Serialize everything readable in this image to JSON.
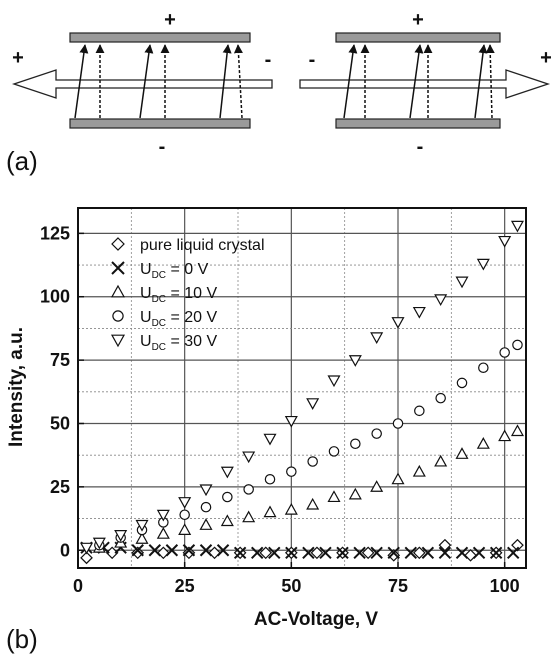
{
  "panel_a": {
    "label": "(a)",
    "left_cell": {
      "top_sign": "+",
      "bottom_sign": "-",
      "left_sign": "+",
      "right_sign": "-"
    },
    "right_cell": {
      "top_sign": "+",
      "bottom_sign": "-",
      "left_sign": "-",
      "right_sign": "+"
    }
  },
  "panel_b": {
    "label": "(b)"
  },
  "chart_data": {
    "type": "scatter",
    "xlabel": "AC-Voltage, V",
    "ylabel": "Intensity, a.u.",
    "xlim": [
      0,
      105
    ],
    "ylim": [
      -7,
      135
    ],
    "xticks": [
      0,
      25,
      50,
      75,
      100
    ],
    "yticks": [
      0,
      25,
      50,
      75,
      100,
      125
    ],
    "grid": true,
    "legend_position": "top-left",
    "series": [
      {
        "name": "pure liquid crystal",
        "name_main": "pure liquid crystal",
        "name_sub": "",
        "name_tail": "",
        "marker": "diamond",
        "x": [
          2,
          8,
          14,
          20,
          26,
          32,
          38,
          44,
          50,
          56,
          62,
          68,
          74,
          80,
          86,
          92,
          98,
          103
        ],
        "y": [
          -3,
          -1,
          -1,
          -1,
          -1,
          -1,
          -1,
          -1,
          -1,
          -1,
          -1,
          -1,
          -2,
          -1,
          2,
          -2,
          -1,
          2
        ]
      },
      {
        "name": "UDC = 0 V",
        "name_main": "U",
        "name_sub": "DC",
        "name_tail": " = 0 V",
        "marker": "x",
        "x": [
          2,
          6,
          10,
          14,
          18,
          22,
          26,
          30,
          34,
          38,
          42,
          46,
          50,
          54,
          58,
          62,
          66,
          70,
          74,
          78,
          82,
          86,
          90,
          94,
          98,
          102
        ],
        "y": [
          1,
          1,
          1,
          0,
          0,
          0,
          0,
          0,
          0,
          -1,
          -1,
          -1,
          -1,
          -1,
          -1,
          -1,
          -1,
          -1,
          -1,
          -1,
          -1,
          -1,
          -1,
          -1,
          -1,
          -1
        ]
      },
      {
        "name": "UDC = 10 V",
        "name_main": "U",
        "name_sub": "DC",
        "name_tail": " = 10 V",
        "marker": "triangle-up",
        "x": [
          5,
          10,
          15,
          20,
          25,
          30,
          35,
          40,
          45,
          50,
          55,
          60,
          65,
          70,
          75,
          80,
          85,
          90,
          95,
          100,
          103
        ],
        "y": [
          1,
          3,
          4.5,
          6.5,
          8,
          10,
          11.5,
          13,
          15,
          16,
          18,
          21,
          22,
          25,
          28,
          31,
          35,
          38,
          42,
          45,
          47
        ]
      },
      {
        "name": "UDC = 20 V",
        "name_main": "U",
        "name_sub": "DC",
        "name_tail": " = 20 V",
        "marker": "circle",
        "x": [
          5,
          10,
          15,
          20,
          25,
          30,
          35,
          40,
          45,
          50,
          55,
          60,
          65,
          70,
          75,
          80,
          85,
          90,
          95,
          100,
          103
        ],
        "y": [
          2,
          5,
          8,
          11,
          14,
          17,
          21,
          24,
          28,
          31,
          35,
          39,
          42,
          46,
          50,
          55,
          60,
          66,
          72,
          78,
          81
        ]
      },
      {
        "name": "UDC = 30 V",
        "name_main": "U",
        "name_sub": "DC",
        "name_tail": " = 30 V",
        "marker": "triangle-down",
        "x": [
          2,
          5,
          10,
          15,
          20,
          25,
          30,
          35,
          40,
          45,
          50,
          55,
          60,
          65,
          70,
          75,
          80,
          85,
          90,
          95,
          100,
          103
        ],
        "y": [
          1,
          3,
          6,
          10,
          14,
          19,
          24,
          31,
          37,
          44,
          51,
          58,
          67,
          75,
          84,
          90,
          94,
          99,
          106,
          113,
          122,
          128
        ]
      }
    ]
  }
}
